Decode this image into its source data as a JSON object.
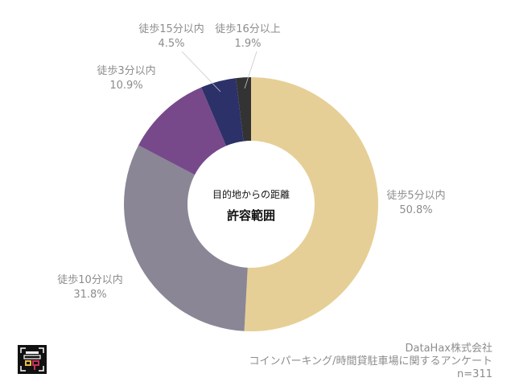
{
  "chart_data": {
    "type": "donut",
    "center_title": [
      "目的地からの距離",
      "許容範囲"
    ],
    "slices": [
      {
        "label": "徒歩5分以内",
        "value": 50.8,
        "value_label": "50.8%",
        "color": "#e6cf96"
      },
      {
        "label": "徒歩10分以内",
        "value": 31.8,
        "value_label": "31.8%",
        "color": "#8a8696"
      },
      {
        "label": "徒歩3分以内",
        "value": 10.9,
        "value_label": "10.9%",
        "color": "#77498a"
      },
      {
        "label": "徒歩15分以内",
        "value": 4.5,
        "value_label": "4.5%",
        "color": "#2d3169"
      },
      {
        "label": "徒歩16分以上",
        "value": 1.9,
        "value_label": "1.9%",
        "color": "#333333"
      }
    ],
    "start": "top",
    "direction": "clockwise"
  },
  "credit": {
    "company": "DataHax株式会社",
    "survey": "コインパーキング/時間貸駐車場に関するアンケート",
    "n": "n=311"
  },
  "logo": {
    "name": "company-logo",
    "colors": [
      "#111111",
      "#e8b94a",
      "#c8325a",
      "#ffffff"
    ]
  }
}
